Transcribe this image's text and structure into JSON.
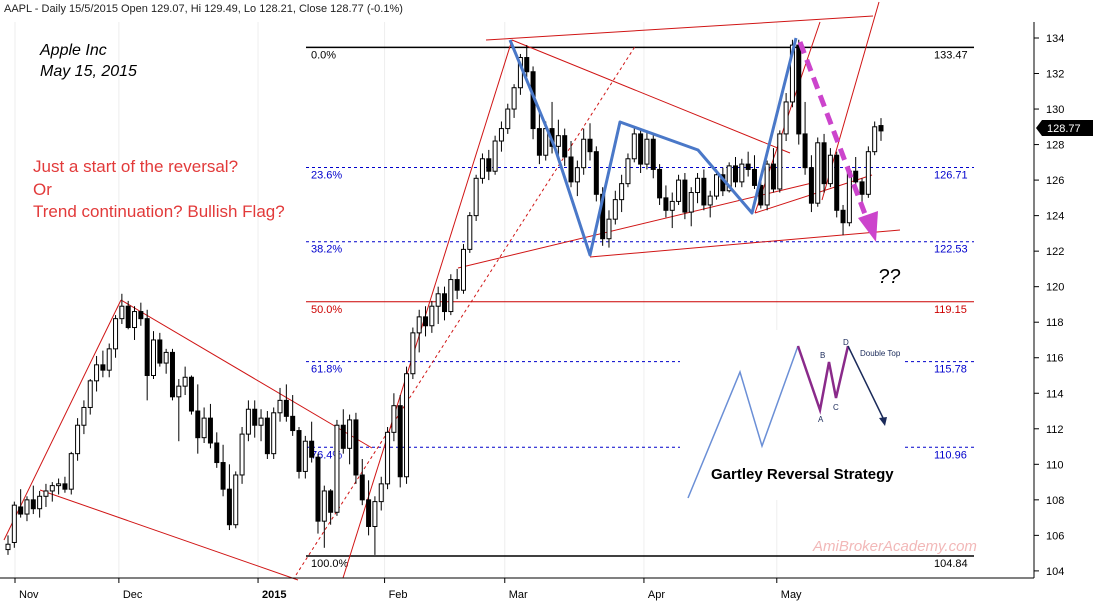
{
  "header_text": "AAPL - Daily 15/5/2015 Open 129.07, Hi 129.49, Lo 128.21, Close 128.77 (-0.1%)",
  "chart_data": {
    "type": "candlestick",
    "symbol": "AAPL",
    "title_lines": [
      "Apple Inc",
      "May 15, 2015"
    ],
    "ylim": [
      103.6,
      134.9
    ],
    "y_ticks": [
      104,
      106,
      108,
      110,
      112,
      114,
      116,
      118,
      120,
      122,
      124,
      126,
      128,
      130,
      132,
      134
    ],
    "x_month_labels": [
      "Nov",
      "Dec",
      "2015",
      "Feb",
      "Mar",
      "Apr",
      "May"
    ],
    "last_price": "128.77",
    "fib_levels": [
      {
        "label": "0.0%",
        "value": "133.47",
        "color": "#000000",
        "style": "solid"
      },
      {
        "label": "23.6%",
        "value": "126.71",
        "color": "#0000cc",
        "style": "dashed"
      },
      {
        "label": "38.2%",
        "value": "122.53",
        "color": "#0000cc",
        "style": "dashed"
      },
      {
        "label": "50.0%",
        "value": "119.15",
        "color": "#cc0000",
        "style": "solid"
      },
      {
        "label": "61.8%",
        "value": "115.78",
        "color": "#0000cc",
        "style": "dashed"
      },
      {
        "label": "76.4%",
        "value": "110.96",
        "color": "#0000cc",
        "style": "dashed"
      },
      {
        "label": "100.0%",
        "value": "104.84",
        "color": "#000000",
        "style": "solid"
      }
    ],
    "annotations": {
      "question_lines": [
        "Just a start of the reversal?",
        "Or",
        "Trend continuation? Bullish Flag?"
      ],
      "question_marks": "??",
      "watermark": "AmiBrokerAcademy.com"
    },
    "inset": {
      "caption": "Gartley Reversal Strategy",
      "point_labels": [
        "A",
        "B",
        "C",
        "D"
      ],
      "pattern_label": "Double Top"
    },
    "candles": [
      [
        105.2,
        106.0,
        104.9,
        105.5
      ],
      [
        105.6,
        107.9,
        105.3,
        107.7
      ],
      [
        107.6,
        108.6,
        107.0,
        107.2
      ],
      [
        107.2,
        108.2,
        106.8,
        108.0
      ],
      [
        108.0,
        108.8,
        107.2,
        107.5
      ],
      [
        107.5,
        108.5,
        107.0,
        108.2
      ],
      [
        108.2,
        108.9,
        107.6,
        108.5
      ],
      [
        108.5,
        109.0,
        107.9,
        108.8
      ],
      [
        108.8,
        109.2,
        108.3,
        108.9
      ],
      [
        108.9,
        109.3,
        108.4,
        108.6
      ],
      [
        108.6,
        110.7,
        108.3,
        110.6
      ],
      [
        110.6,
        112.6,
        110.2,
        112.2
      ],
      [
        112.2,
        113.6,
        111.7,
        113.2
      ],
      [
        113.2,
        114.8,
        112.8,
        114.7
      ],
      [
        114.7,
        116.1,
        114.1,
        115.6
      ],
      [
        115.6,
        116.4,
        114.9,
        115.3
      ],
      [
        115.3,
        116.8,
        114.9,
        116.5
      ],
      [
        116.5,
        118.4,
        116.0,
        118.2
      ],
      [
        118.2,
        119.6,
        117.9,
        118.9
      ],
      [
        118.9,
        119.2,
        117.6,
        117.7
      ],
      [
        117.7,
        118.9,
        117.0,
        118.6
      ],
      [
        118.6,
        119.1,
        117.8,
        118.2
      ],
      [
        118.2,
        118.7,
        113.6,
        115.0
      ],
      [
        115.0,
        117.5,
        114.8,
        117.0
      ],
      [
        117.0,
        117.4,
        115.5,
        115.7
      ],
      [
        115.7,
        116.5,
        115.1,
        116.3
      ],
      [
        116.3,
        116.5,
        113.6,
        113.8
      ],
      [
        113.8,
        114.8,
        111.3,
        114.4
      ],
      [
        114.4,
        115.5,
        113.9,
        114.9
      ],
      [
        114.9,
        115.0,
        112.8,
        113.0
      ],
      [
        113.0,
        114.5,
        110.6,
        111.5
      ],
      [
        111.5,
        113.2,
        111.2,
        112.6
      ],
      [
        112.6,
        113.4,
        110.9,
        111.2
      ],
      [
        111.2,
        111.8,
        109.8,
        110.1
      ],
      [
        110.1,
        111.1,
        108.2,
        108.6
      ],
      [
        108.6,
        110.0,
        106.3,
        106.6
      ],
      [
        106.6,
        109.6,
        106.4,
        109.4
      ],
      [
        109.4,
        112.1,
        108.9,
        111.7
      ],
      [
        111.7,
        113.6,
        111.3,
        113.1
      ],
      [
        113.1,
        113.6,
        111.5,
        112.2
      ],
      [
        112.2,
        113.1,
        111.3,
        112.6
      ],
      [
        112.6,
        113.0,
        110.3,
        110.6
      ],
      [
        110.6,
        113.2,
        110.3,
        112.9
      ],
      [
        112.9,
        114.3,
        112.4,
        113.6
      ],
      [
        113.6,
        114.5,
        112.4,
        112.7
      ],
      [
        112.7,
        113.9,
        111.6,
        111.9
      ],
      [
        111.9,
        112.1,
        109.2,
        109.6
      ],
      [
        109.6,
        111.6,
        109.2,
        111.3
      ],
      [
        111.3,
        112.4,
        110.1,
        110.4
      ],
      [
        110.4,
        110.6,
        106.1,
        106.8
      ],
      [
        106.8,
        108.8,
        105.3,
        108.5
      ],
      [
        108.5,
        108.6,
        106.6,
        107.3
      ],
      [
        107.3,
        112.5,
        107.1,
        112.2
      ],
      [
        112.2,
        113.1,
        110.6,
        110.9
      ],
      [
        110.9,
        112.8,
        110.0,
        112.5
      ],
      [
        112.5,
        112.9,
        108.9,
        109.4
      ],
      [
        109.4,
        110.3,
        107.7,
        108.0
      ],
      [
        108.0,
        109.1,
        106.0,
        106.5
      ],
      [
        106.5,
        108.2,
        104.9,
        107.9
      ],
      [
        107.9,
        109.3,
        107.4,
        108.9
      ],
      [
        108.9,
        112.1,
        108.6,
        111.8
      ],
      [
        111.8,
        114.0,
        111.3,
        113.3
      ],
      [
        113.3,
        113.9,
        108.7,
        109.3
      ],
      [
        109.3,
        115.5,
        108.9,
        115.1
      ],
      [
        115.1,
        117.7,
        114.8,
        117.4
      ],
      [
        117.4,
        118.7,
        116.3,
        118.3
      ],
      [
        118.3,
        118.9,
        117.2,
        117.8
      ],
      [
        117.8,
        119.2,
        117.4,
        118.9
      ],
      [
        118.9,
        120.0,
        117.9,
        119.6
      ],
      [
        119.6,
        120.0,
        118.1,
        118.6
      ],
      [
        118.6,
        120.7,
        118.4,
        120.4
      ],
      [
        120.4,
        121.0,
        119.3,
        119.8
      ],
      [
        119.8,
        122.4,
        119.6,
        122.1
      ],
      [
        122.1,
        124.2,
        121.9,
        124.0
      ],
      [
        124.0,
        126.3,
        123.7,
        126.1
      ],
      [
        126.1,
        127.5,
        125.8,
        127.2
      ],
      [
        127.2,
        127.7,
        126.0,
        126.5
      ],
      [
        126.5,
        128.5,
        126.3,
        128.2
      ],
      [
        128.2,
        129.3,
        127.6,
        128.9
      ],
      [
        128.9,
        130.3,
        128.6,
        130.0
      ],
      [
        130.0,
        131.4,
        129.5,
        131.2
      ],
      [
        131.2,
        133.1,
        130.8,
        132.9
      ],
      [
        132.9,
        133.6,
        131.8,
        132.1
      ],
      [
        132.1,
        132.4,
        128.3,
        128.9
      ],
      [
        128.9,
        129.8,
        126.9,
        127.4
      ],
      [
        127.4,
        129.3,
        127.1,
        128.9
      ],
      [
        128.9,
        130.4,
        127.5,
        127.9
      ],
      [
        127.9,
        129.4,
        127.2,
        128.5
      ],
      [
        128.5,
        128.9,
        126.8,
        127.3
      ],
      [
        127.3,
        128.2,
        125.6,
        125.9
      ],
      [
        125.9,
        127.1,
        125.1,
        126.7
      ],
      [
        126.7,
        128.9,
        126.3,
        128.3
      ],
      [
        128.3,
        129.2,
        127.1,
        127.6
      ],
      [
        127.6,
        127.9,
        124.8,
        125.2
      ],
      [
        125.2,
        125.6,
        122.3,
        122.7
      ],
      [
        122.7,
        124.3,
        122.2,
        123.8
      ],
      [
        123.8,
        125.4,
        123.5,
        124.9
      ],
      [
        124.9,
        126.3,
        124.2,
        125.8
      ],
      [
        125.8,
        127.5,
        125.6,
        127.2
      ],
      [
        127.2,
        129.0,
        127.0,
        128.6
      ],
      [
        128.6,
        128.9,
        126.4,
        126.9
      ],
      [
        126.9,
        128.8,
        126.6,
        128.3
      ],
      [
        128.3,
        128.6,
        126.1,
        126.6
      ],
      [
        126.6,
        126.9,
        124.6,
        125.0
      ],
      [
        125.0,
        125.7,
        123.9,
        124.3
      ],
      [
        124.3,
        125.3,
        123.3,
        124.8
      ],
      [
        124.8,
        126.3,
        124.6,
        126.0
      ],
      [
        126.0,
        126.4,
        123.8,
        124.2
      ],
      [
        124.2,
        125.6,
        123.4,
        125.3
      ],
      [
        125.3,
        126.4,
        124.7,
        126.1
      ],
      [
        126.1,
        126.6,
        124.3,
        124.6
      ],
      [
        124.6,
        125.4,
        123.9,
        125.1
      ],
      [
        125.1,
        126.6,
        124.9,
        126.3
      ],
      [
        126.3,
        126.7,
        125.1,
        125.4
      ],
      [
        125.4,
        127.0,
        125.3,
        126.8
      ],
      [
        126.8,
        127.3,
        125.6,
        125.9
      ],
      [
        125.9,
        127.2,
        125.6,
        126.9
      ],
      [
        126.9,
        127.6,
        126.2,
        126.6
      ],
      [
        126.6,
        127.4,
        125.5,
        125.7
      ],
      [
        125.7,
        126.3,
        124.4,
        124.6
      ],
      [
        124.6,
        127.1,
        124.3,
        126.9
      ],
      [
        126.9,
        127.8,
        125.3,
        125.5
      ],
      [
        125.5,
        128.8,
        125.3,
        128.6
      ],
      [
        128.6,
        130.9,
        128.2,
        130.4
      ],
      [
        130.4,
        133.9,
        130.1,
        133.6
      ],
      [
        133.6,
        133.9,
        128.0,
        128.6
      ],
      [
        128.6,
        130.4,
        126.3,
        126.7
      ],
      [
        126.7,
        127.4,
        124.2,
        124.7
      ],
      [
        124.7,
        128.4,
        124.5,
        128.1
      ],
      [
        128.1,
        128.6,
        125.3,
        125.8
      ],
      [
        125.8,
        127.8,
        125.6,
        127.4
      ],
      [
        127.4,
        127.6,
        123.9,
        124.3
      ],
      [
        124.3,
        124.6,
        122.9,
        123.6
      ],
      [
        123.6,
        126.8,
        123.4,
        126.5
      ],
      [
        126.5,
        127.3,
        125.6,
        125.9
      ],
      [
        125.9,
        126.1,
        124.7,
        125.2
      ],
      [
        125.2,
        127.9,
        125.0,
        127.6
      ],
      [
        127.6,
        129.3,
        127.4,
        129.0
      ],
      [
        129.07,
        129.49,
        128.21,
        128.77
      ]
    ]
  }
}
